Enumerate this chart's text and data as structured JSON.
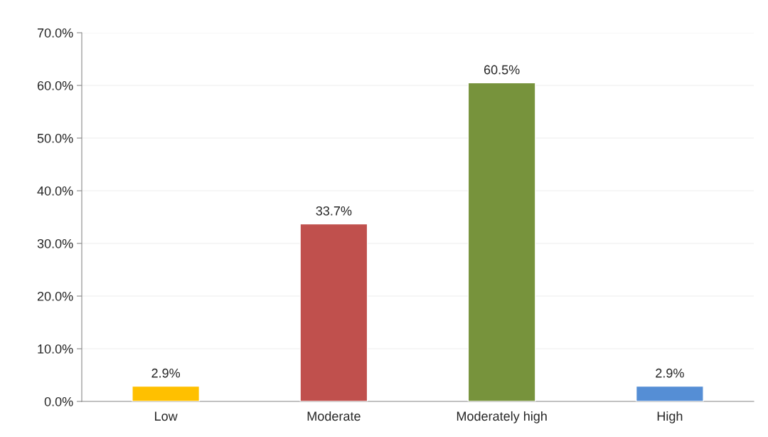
{
  "chart_data": {
    "type": "bar",
    "categories": [
      "Low",
      "Moderate",
      "Moderately high",
      "High"
    ],
    "values": [
      2.9,
      33.7,
      60.5,
      2.9
    ],
    "colors": [
      "#ffc000",
      "#c0504d",
      "#77933c",
      "#558ed5"
    ],
    "value_labels": [
      "2.9%",
      "33.7%",
      "60.5%",
      "2.9%"
    ],
    "ylim": [
      0,
      70
    ],
    "yticks": [
      {
        "value": 0,
        "label": "0.0%"
      },
      {
        "value": 10,
        "label": "10.0%"
      },
      {
        "value": 20,
        "label": "20.0%"
      },
      {
        "value": 30,
        "label": "30.0%"
      },
      {
        "value": 40,
        "label": "40.0%"
      },
      {
        "value": 50,
        "label": "50.0%"
      },
      {
        "value": 60,
        "label": "60.0%"
      },
      {
        "value": 70,
        "label": "70.0%"
      }
    ],
    "grid": "y"
  }
}
